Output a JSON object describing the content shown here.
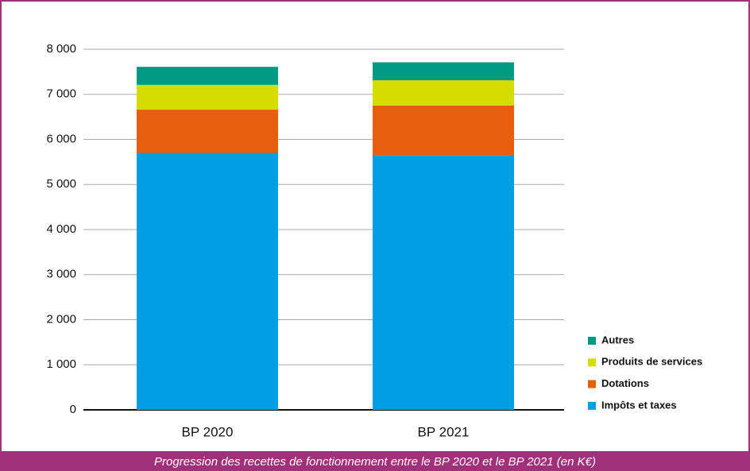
{
  "chart_data": {
    "type": "stacked_bar",
    "title": "Progression des recettes de fonctionnement entre le BP 2020 et le BP 2021 (en K€)",
    "categories": [
      "BP 2020",
      "BP 2021"
    ],
    "series": [
      {
        "name": "Impôts et taxes",
        "color": "#009fe3",
        "values": [
          5700,
          5650
        ]
      },
      {
        "name": "Dotations",
        "color": "#e85e0f",
        "values": [
          960,
          1100
        ]
      },
      {
        "name": "Produits de services",
        "color": "#d5dc00",
        "values": [
          550,
          560
        ]
      },
      {
        "name": "Autres",
        "color": "#009a84",
        "values": [
          400,
          400
        ]
      }
    ],
    "ylim": [
      0,
      8000
    ],
    "yticks": [
      0,
      {
        "value": 1000,
        "label": "1 000"
      },
      {
        "value": 2000,
        "label": "2 000"
      },
      {
        "value": 3000,
        "label": "3 000"
      },
      {
        "value": 4000,
        "label": "4 000"
      },
      {
        "value": 5000,
        "label": "5 000"
      },
      {
        "value": 6000,
        "label": "6 000"
      },
      {
        "value": 7000,
        "label": "7 000"
      },
      {
        "value": 8000,
        "label": "8 000"
      }
    ],
    "grid": true,
    "legend": "right"
  }
}
